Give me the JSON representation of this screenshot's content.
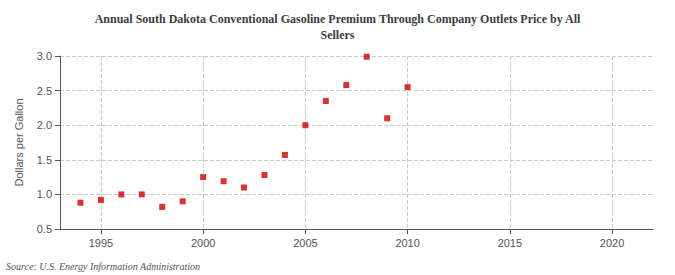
{
  "chart_data": {
    "type": "scatter",
    "title": "Annual South Dakota Conventional Gasoline Premium Through Company Outlets Price by All\nSellers",
    "ylabel": "Dollars per Gallon",
    "annotation": "Source: U.S. Energy Information Administration",
    "x": [
      1994,
      1995,
      1996,
      1997,
      1998,
      1999,
      2000,
      2001,
      2002,
      2003,
      2004,
      2005,
      2006,
      2007,
      2008,
      2009,
      2010
    ],
    "values": [
      0.88,
      0.92,
      1.0,
      1.0,
      0.82,
      0.9,
      1.25,
      1.19,
      1.1,
      1.28,
      1.57,
      2.0,
      2.35,
      2.58,
      2.99,
      2.1,
      2.55
    ],
    "color": "#cc0000",
    "marker": "square",
    "xlim": [
      1993,
      2022
    ],
    "ylim": [
      0.5,
      3.0
    ],
    "xticks": [
      1995,
      2000,
      2005,
      2010,
      2015,
      2020
    ],
    "yticks": [
      0.5,
      {
        "value": 1.0,
        "label": "1.0"
      },
      1.5,
      {
        "value": 2.0,
        "label": "2.0"
      },
      2.5,
      {
        "value": 3.0,
        "label": "3.0"
      }
    ],
    "grid": true
  }
}
